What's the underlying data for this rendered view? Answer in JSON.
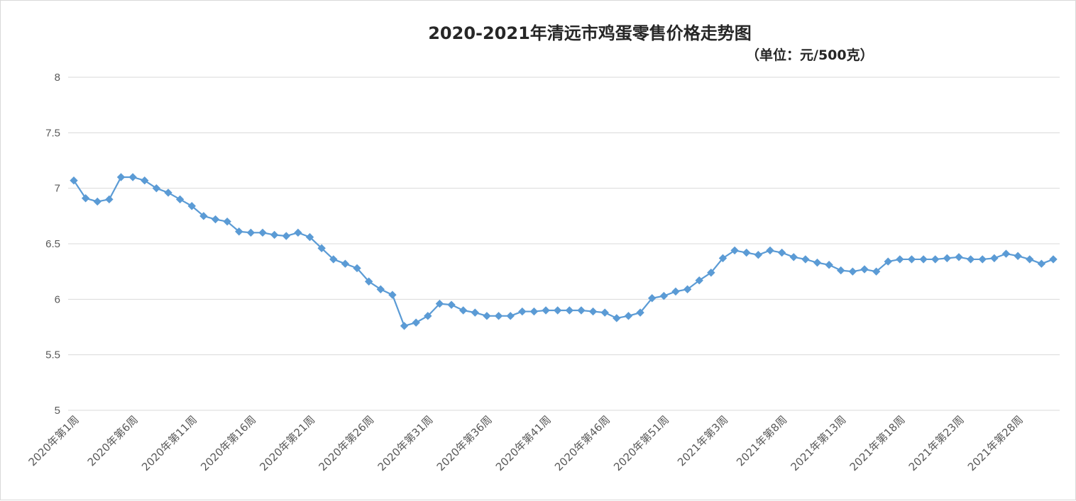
{
  "chart_data": {
    "type": "line",
    "title": "2020-2021年清远市鸡蛋零售价格走势图",
    "subtitle": "（单位：元/500克）",
    "xlabel": "",
    "ylabel": "",
    "ylim": [
      5,
      8
    ],
    "y_ticks": [
      "5",
      "5.5",
      "6",
      "6.5",
      "7",
      "7.5",
      "8"
    ],
    "grid": true,
    "legend": "none",
    "line_color": "#5b9bd5",
    "grid_color": "#d9d9d9",
    "categories": [
      "2020年第1周",
      "2020年第2周",
      "2020年第3周",
      "2020年第4周",
      "2020年第5周",
      "2020年第6周",
      "2020年第7周",
      "2020年第8周",
      "2020年第9周",
      "2020年第10周",
      "2020年第11周",
      "2020年第12周",
      "2020年第13周",
      "2020年第14周",
      "2020年第15周",
      "2020年第16周",
      "2020年第17周",
      "2020年第18周",
      "2020年第19周",
      "2020年第20周",
      "2020年第21周",
      "2020年第22周",
      "2020年第23周",
      "2020年第24周",
      "2020年第25周",
      "2020年第26周",
      "2020年第27周",
      "2020年第28周",
      "2020年第29周",
      "2020年第30周",
      "2020年第31周",
      "2020年第32周",
      "2020年第33周",
      "2020年第34周",
      "2020年第35周",
      "2020年第36周",
      "2020年第37周",
      "2020年第38周",
      "2020年第39周",
      "2020年第40周",
      "2020年第41周",
      "2020年第42周",
      "2020年第43周",
      "2020年第44周",
      "2020年第45周",
      "2020年第46周",
      "2020年第47周",
      "2020年第48周",
      "2020年第49周",
      "2020年第50周",
      "2020年第51周",
      "2020年第52周",
      "2020年第53周",
      "2021年第1周",
      "2021年第2周",
      "2021年第3周",
      "2021年第4周",
      "2021年第5周",
      "2021年第6周",
      "2021年第7周",
      "2021年第8周",
      "2021年第9周",
      "2021年第10周",
      "2021年第11周",
      "2021年第12周",
      "2021年第13周",
      "2021年第14周",
      "2021年第15周",
      "2021年第16周",
      "2021年第17周",
      "2021年第18周",
      "2021年第19周",
      "2021年第20周",
      "2021年第21周",
      "2021年第22周",
      "2021年第23周",
      "2021年第24周",
      "2021年第25周",
      "2021年第26周",
      "2021年第27周",
      "2021年第28周",
      "2021年第29周",
      "2021年第30周",
      "2021年第31周"
    ],
    "x_tick_labels": [
      "2020年第1周",
      "2020年第6周",
      "2020年第11周",
      "2020年第16周",
      "2020年第21周",
      "2020年第26周",
      "2020年第31周",
      "2020年第36周",
      "2020年第41周",
      "2020年第46周",
      "2020年第51周",
      "2021年第3周",
      "2021年第8周",
      "2021年第13周",
      "2021年第18周",
      "2021年第23周",
      "2021年第28周"
    ],
    "values": [
      7.07,
      6.91,
      6.88,
      6.9,
      7.1,
      7.1,
      7.07,
      7.0,
      6.96,
      6.9,
      6.84,
      6.75,
      6.72,
      6.7,
      6.61,
      6.6,
      6.6,
      6.58,
      6.57,
      6.6,
      6.56,
      6.46,
      6.36,
      6.32,
      6.28,
      6.16,
      6.09,
      6.04,
      5.76,
      5.79,
      5.85,
      5.96,
      5.95,
      5.9,
      5.88,
      5.85,
      5.85,
      5.85,
      5.89,
      5.89,
      5.9,
      5.9,
      5.9,
      5.9,
      5.89,
      5.88,
      5.83,
      5.85,
      5.88,
      6.01,
      6.03,
      6.07,
      6.09,
      6.17,
      6.24,
      6.37,
      6.44,
      6.42,
      6.4,
      6.44,
      6.42,
      6.38,
      6.36,
      6.33,
      6.31,
      6.26,
      6.25,
      6.27,
      6.25,
      6.34,
      6.36,
      6.36,
      6.36,
      6.36,
      6.37,
      6.38,
      6.36,
      6.36,
      6.37,
      6.41,
      6.39,
      6.36,
      6.32,
      6.36
    ]
  }
}
